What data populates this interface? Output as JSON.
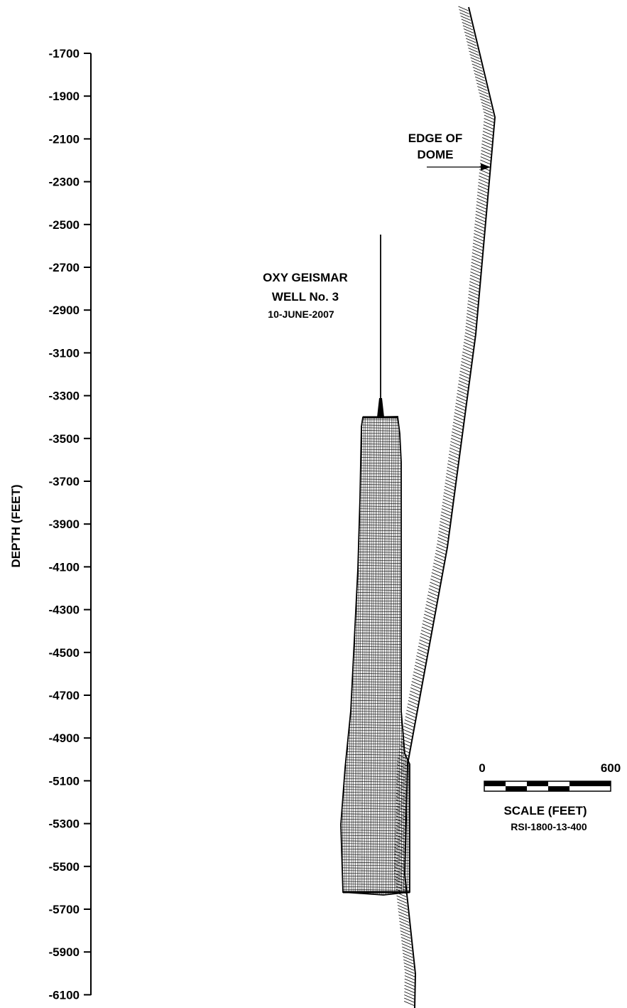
{
  "axis": {
    "title": "DEPTH (FEET)",
    "ticks": [
      -1700,
      -1900,
      -2100,
      -2300,
      -2500,
      -2700,
      -2900,
      -3100,
      -3300,
      -3500,
      -3700,
      -3900,
      -4100,
      -4300,
      -4500,
      -4700,
      -4900,
      -5100,
      -5300,
      -5500,
      -5700,
      -5900,
      -6100
    ]
  },
  "dome": {
    "label_line1": "EDGE OF",
    "label_line2": "DOME"
  },
  "well": {
    "name_line1": "OXY GEISMAR",
    "name_line2": "WELL No. 3",
    "date": "10-JUNE-2007"
  },
  "scale": {
    "min_label": "0",
    "max_label": "600",
    "title": "SCALE (FEET)",
    "code": "RSI-1800-13-400"
  },
  "colors": {
    "ink": "#000000",
    "background": "#ffffff"
  }
}
